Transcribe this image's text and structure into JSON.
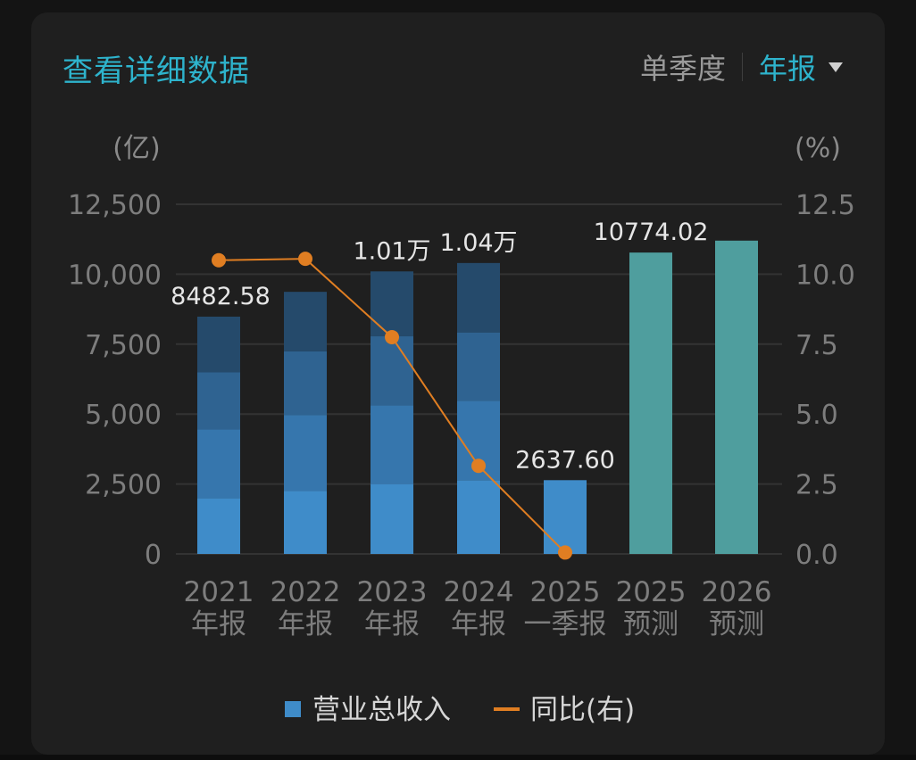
{
  "header": {
    "title": "查看详细数据",
    "tabs": [
      {
        "label": "单季度",
        "active": false
      },
      {
        "label": "年报",
        "active": true
      }
    ]
  },
  "chart_data": {
    "type": "bar",
    "left_unit": "(亿)",
    "right_unit": "(%)",
    "left_ticks": [
      "0",
      "2,500",
      "5,000",
      "7,500",
      "10,000",
      "12,500"
    ],
    "right_ticks": [
      "0.0",
      "2.5",
      "5.0",
      "7.5",
      "10.0",
      "12.5"
    ],
    "ylim_left": [
      0,
      12500
    ],
    "ylim_right": [
      0,
      12.5
    ],
    "categories": [
      [
        "2021",
        "年报"
      ],
      [
        "2022",
        "年报"
      ],
      [
        "2023",
        "年报"
      ],
      [
        "2024",
        "年报"
      ],
      [
        "2025",
        "一季报"
      ],
      [
        "2025",
        "预测"
      ],
      [
        "2026",
        "预测"
      ]
    ],
    "series": [
      {
        "name": "营业总收入",
        "axis": "left",
        "kind": "bar",
        "values": [
          8482.58,
          9370,
          10100,
          10400,
          2637.6,
          10774.02,
          11200
        ],
        "bar_styles": [
          "stacked",
          "stacked",
          "stacked",
          "stacked",
          "single",
          "forecast",
          "forecast"
        ],
        "quarter_splits": [
          [
            2000,
            4450,
            6500,
            8482.58
          ],
          [
            2260,
            4970,
            7240,
            9370
          ],
          [
            2500,
            5320,
            7780,
            10100
          ],
          [
            2637.6,
            5480,
            7920,
            10400
          ],
          [
            2637.6
          ],
          [],
          []
        ],
        "data_labels": [
          "8482.58",
          "",
          "1.01万",
          "1.04万",
          "2637.60",
          "10774.02",
          ""
        ]
      },
      {
        "name": "同比(右)",
        "axis": "right",
        "kind": "line",
        "values": [
          10.5,
          10.55,
          7.75,
          3.15,
          0.05,
          null,
          null
        ]
      }
    ],
    "colors": {
      "quarter_fills": [
        "#3f8cc9",
        "#3676ad",
        "#2f6391",
        "#254a6b"
      ],
      "single_bar": "#3f8cc9",
      "forecast_bar": "#4f9e9e",
      "line": "#e07e22",
      "grid": "#333333",
      "legend_bar": "#3f8cc9"
    },
    "grid": true,
    "legend_position": "bottom-center"
  }
}
